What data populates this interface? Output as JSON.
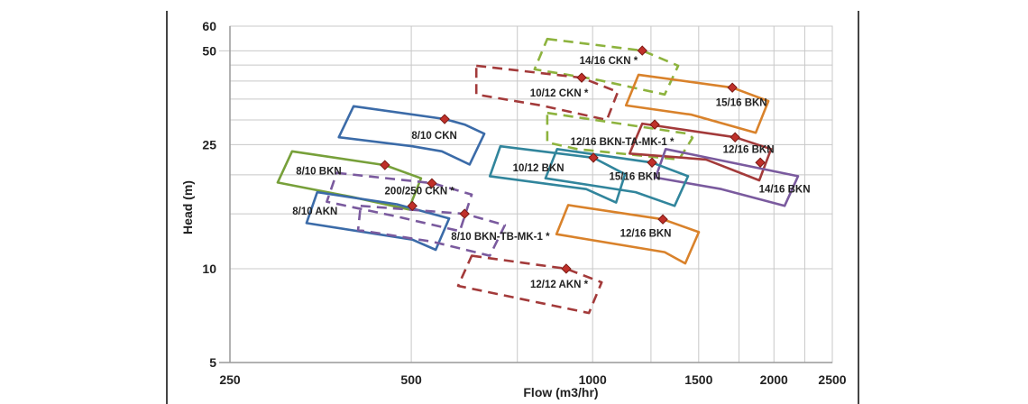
{
  "chart_data": {
    "type": "scatter",
    "title": "",
    "xlabel": "Flow (m3/hr)",
    "ylabel": "Head (m)",
    "xscale": "log",
    "yscale": "log",
    "xlim": [
      250,
      2500
    ],
    "ylim": [
      5,
      60
    ],
    "xticks": [
      250,
      500,
      1000,
      1500,
      2000,
      2500
    ],
    "yticks": [
      5,
      10,
      25,
      50,
      60
    ],
    "x_gridlines": [
      500,
      750,
      1000,
      1250,
      1500,
      1750,
      2000,
      2250
    ],
    "y_gridlines": [
      10,
      15,
      20,
      25,
      30,
      35,
      40,
      45,
      50
    ],
    "grid": true,
    "legend": "none",
    "series": [
      {
        "name": "8/10 CKN",
        "color": "#3B6BA8",
        "dashed": false,
        "polygon": [
          [
            401,
            33.2
          ],
          [
            568,
            30.2
          ],
          [
            613,
            29.0
          ],
          [
            661,
            27.1
          ],
          [
            625,
            21.6
          ],
          [
            562,
            23.8
          ],
          [
            502,
            24.7
          ],
          [
            379,
            26.4
          ]
        ],
        "markers": [
          [
            568,
            30.2
          ]
        ],
        "label_at": [
          546,
          26.8
        ]
      },
      {
        "name": "8/10 BKN",
        "color": "#77A03A",
        "dashed": false,
        "polygon": [
          [
            317,
            23.8
          ],
          [
            452,
            21.5
          ],
          [
            519,
            19.5
          ],
          [
            495,
            15.5
          ],
          [
            398,
            17.0
          ],
          [
            300,
            18.9
          ]
        ],
        "markers": [
          [
            452,
            21.5
          ]
        ],
        "label_at": [
          351,
          20.6
        ]
      },
      {
        "name": "8/10 AKN",
        "color": "#3B6BA8",
        "dashed": false,
        "polygon": [
          [
            349,
            17.6
          ],
          [
            473,
            16.1
          ],
          [
            578,
            14.5
          ],
          [
            549,
            11.5
          ],
          [
            502,
            12.4
          ],
          [
            335,
            14.0
          ]
        ],
        "markers": [
          [
            502,
            15.9
          ]
        ],
        "label_at": [
          346,
          15.3
        ]
      },
      {
        "name": "200/250 CKN *",
        "color": "#7A5A9E",
        "dashed": true,
        "polygon": [
          [
            376,
            20.3
          ],
          [
            543,
            18.8
          ],
          [
            630,
            17.3
          ],
          [
            602,
            13.2
          ],
          [
            473,
            14.7
          ],
          [
            362,
            16.4
          ]
        ],
        "markers": [
          [
            541,
            18.8
          ]
        ],
        "label_at": [
          516,
          17.8
        ]
      },
      {
        "name": "8/10 BKN-TB-MK-1 *",
        "color": "#7A5A9E",
        "dashed": true,
        "polygon": [
          [
            412,
            15.9
          ],
          [
            613,
            15.0
          ],
          [
            715,
            13.8
          ],
          [
            675,
            11.0
          ],
          [
            543,
            12.2
          ],
          [
            408,
            13.3
          ]
        ],
        "markers": [
          [
            613,
            15.0
          ]
        ],
        "label_at": [
          703,
          12.7
        ]
      },
      {
        "name": "14/16 CKN *",
        "color": "#8DB33E",
        "dashed": true,
        "polygon": [
          [
            841,
            54.6
          ],
          [
            1209,
            50.1
          ],
          [
            1387,
            44.8
          ],
          [
            1317,
            36.2
          ],
          [
            1010,
            40.5
          ],
          [
            801,
            43.6
          ]
        ],
        "markers": [
          [
            1209,
            50.1
          ]
        ],
        "label_at": [
          1063,
          46.6
        ]
      },
      {
        "name": "10/12 CKN *",
        "color": "#A33A3A",
        "dashed": true,
        "polygon": [
          [
            641,
            44.8
          ],
          [
            959,
            41.0
          ],
          [
            1101,
            36.9
          ],
          [
            1056,
            30.0
          ],
          [
            821,
            33.4
          ],
          [
            641,
            36.2
          ]
        ],
        "markers": [
          [
            959,
            41.0
          ]
        ],
        "label_at": [
          880,
          36.6
        ]
      },
      {
        "name": "15/16 BKN",
        "color": "#D9822B",
        "dashed": false,
        "polygon": [
          [
            1192,
            41.9
          ],
          [
            1706,
            38.1
          ],
          [
            1958,
            34.5
          ],
          [
            1866,
            27.3
          ],
          [
            1460,
            31.2
          ],
          [
            1136,
            33.4
          ]
        ],
        "markers": [
          [
            1706,
            38.1
          ]
        ],
        "label_at": [
          1766,
          34.2
        ]
      },
      {
        "name": "12/16 BKN-TA-MK-1 *",
        "color": "#8DB33E",
        "dashed": true,
        "polygon": [
          [
            841,
            31.6
          ],
          [
            1440,
            27.1
          ],
          [
            1465,
            26.3
          ],
          [
            1391,
            22.4
          ],
          [
            943,
            24.2
          ],
          [
            841,
            25.4
          ]
        ],
        "markers": [],
        "label_at": [
          1120,
          25.6
        ]
      },
      {
        "name": "12/16 BKN",
        "color": "#A33A3A",
        "dashed": false,
        "polygon": [
          [
            1209,
            29.2
          ],
          [
            1724,
            26.4
          ],
          [
            1978,
            24.2
          ],
          [
            1891,
            19.2
          ],
          [
            1543,
            22.4
          ],
          [
            1152,
            23.4
          ]
        ],
        "markers": [
          [
            1268,
            29.0
          ],
          [
            1724,
            26.4
          ]
        ],
        "label_at": [
          1815,
          24.2
        ]
      },
      {
        "name": "14/16 BKN",
        "color": "#7A5A9E",
        "dashed": false,
        "polygon": [
          [
            1322,
            24.2
          ],
          [
            2193,
            19.8
          ],
          [
            2083,
            15.9
          ],
          [
            1636,
            18.0
          ],
          [
            1272,
            19.6
          ]
        ],
        "markers": [
          [
            1898,
            21.9
          ]
        ],
        "label_at": [
          2083,
          18.0
        ]
      },
      {
        "name": "10/12 BKN",
        "color": "#31859C",
        "dashed": false,
        "polygon": [
          [
            703,
            24.7
          ],
          [
            1003,
            22.7
          ],
          [
            1132,
            20.1
          ],
          [
            1094,
            16.3
          ],
          [
            976,
            18.0
          ],
          [
            675,
            19.8
          ]
        ],
        "markers": [
          [
            1003,
            22.7
          ]
        ],
        "label_at": [
          813,
          21.1
        ]
      },
      {
        "name": "15/16 BKN",
        "color": "#31859C",
        "dashed": false,
        "polygon": [
          [
            873,
            24.2
          ],
          [
            1255,
            21.9
          ],
          [
            1440,
            19.8
          ],
          [
            1368,
            15.9
          ],
          [
            1179,
            17.6
          ],
          [
            835,
            19.5
          ]
        ],
        "markers": [
          [
            1255,
            21.9
          ]
        ],
        "label_at": [
          1175,
          19.8
        ]
      },
      {
        "name": "12/16 BKN",
        "color": "#D9822B",
        "dashed": false,
        "polygon": [
          [
            911,
            16.0
          ],
          [
            1308,
            14.4
          ],
          [
            1501,
            13.1
          ],
          [
            1425,
            10.4
          ],
          [
            1317,
            11.3
          ],
          [
            871,
            12.9
          ]
        ],
        "markers": [
          [
            1308,
            14.4
          ]
        ],
        "label_at": [
          1225,
          13.0
        ]
      },
      {
        "name": "12/12 AKN *",
        "color": "#A33A3A",
        "dashed": true,
        "polygon": [
          [
            630,
            11.0
          ],
          [
            904,
            10.0
          ],
          [
            1035,
            9.04
          ],
          [
            986,
            7.21
          ],
          [
            598,
            8.81
          ]
        ],
        "markers": [
          [
            904,
            10.0
          ]
        ],
        "label_at": [
          880,
          8.92
        ]
      }
    ],
    "marker_color": "#C0302A",
    "grid_color": "#C8C8C8"
  }
}
